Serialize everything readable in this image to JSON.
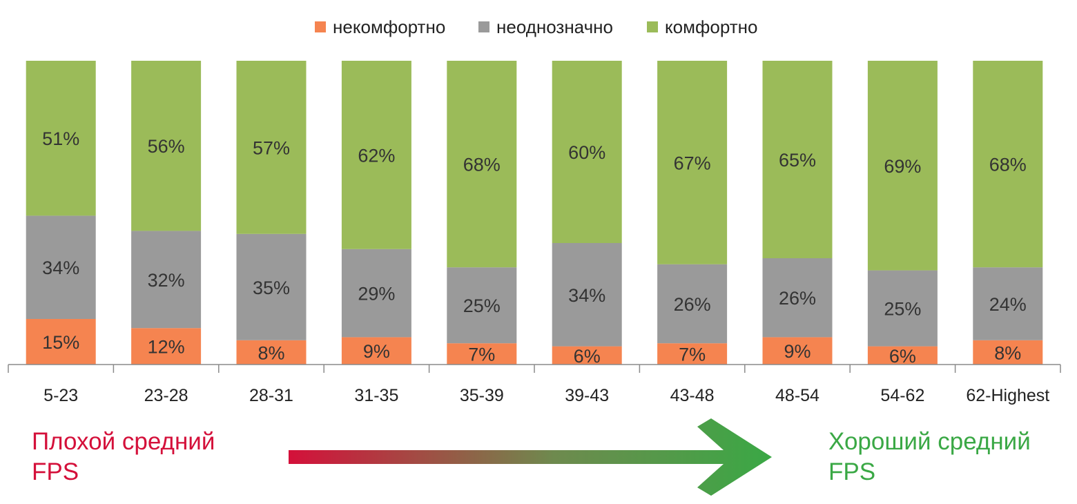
{
  "chart_data": {
    "type": "bar",
    "stacked": true,
    "normalized": true,
    "categories": [
      "5-23",
      "23-28",
      "28-31",
      "31-35",
      "35-39",
      "39-43",
      "43-48",
      "48-54",
      "54-62",
      "62-Highest"
    ],
    "series": [
      {
        "name": "некомфортно",
        "color": "#F58450",
        "values": [
          15,
          12,
          8,
          9,
          7,
          6,
          7,
          9,
          6,
          8
        ]
      },
      {
        "name": "неоднозначно",
        "color": "#9A9A9A",
        "values": [
          34,
          32,
          35,
          29,
          25,
          34,
          26,
          26,
          25,
          24
        ]
      },
      {
        "name": "комфортно",
        "color": "#9BBB59",
        "values": [
          51,
          56,
          57,
          62,
          68,
          60,
          67,
          65,
          69,
          68
        ]
      }
    ],
    "value_suffix": "%",
    "ylim": [
      0,
      100
    ],
    "legend_position": "top",
    "grid": false
  },
  "annotations": {
    "bad_label": "Плохой средний\nFPS",
    "good_label": "Хороший средний\nFPS",
    "bad_color": "#D4103A",
    "good_color": "#3AA845"
  }
}
